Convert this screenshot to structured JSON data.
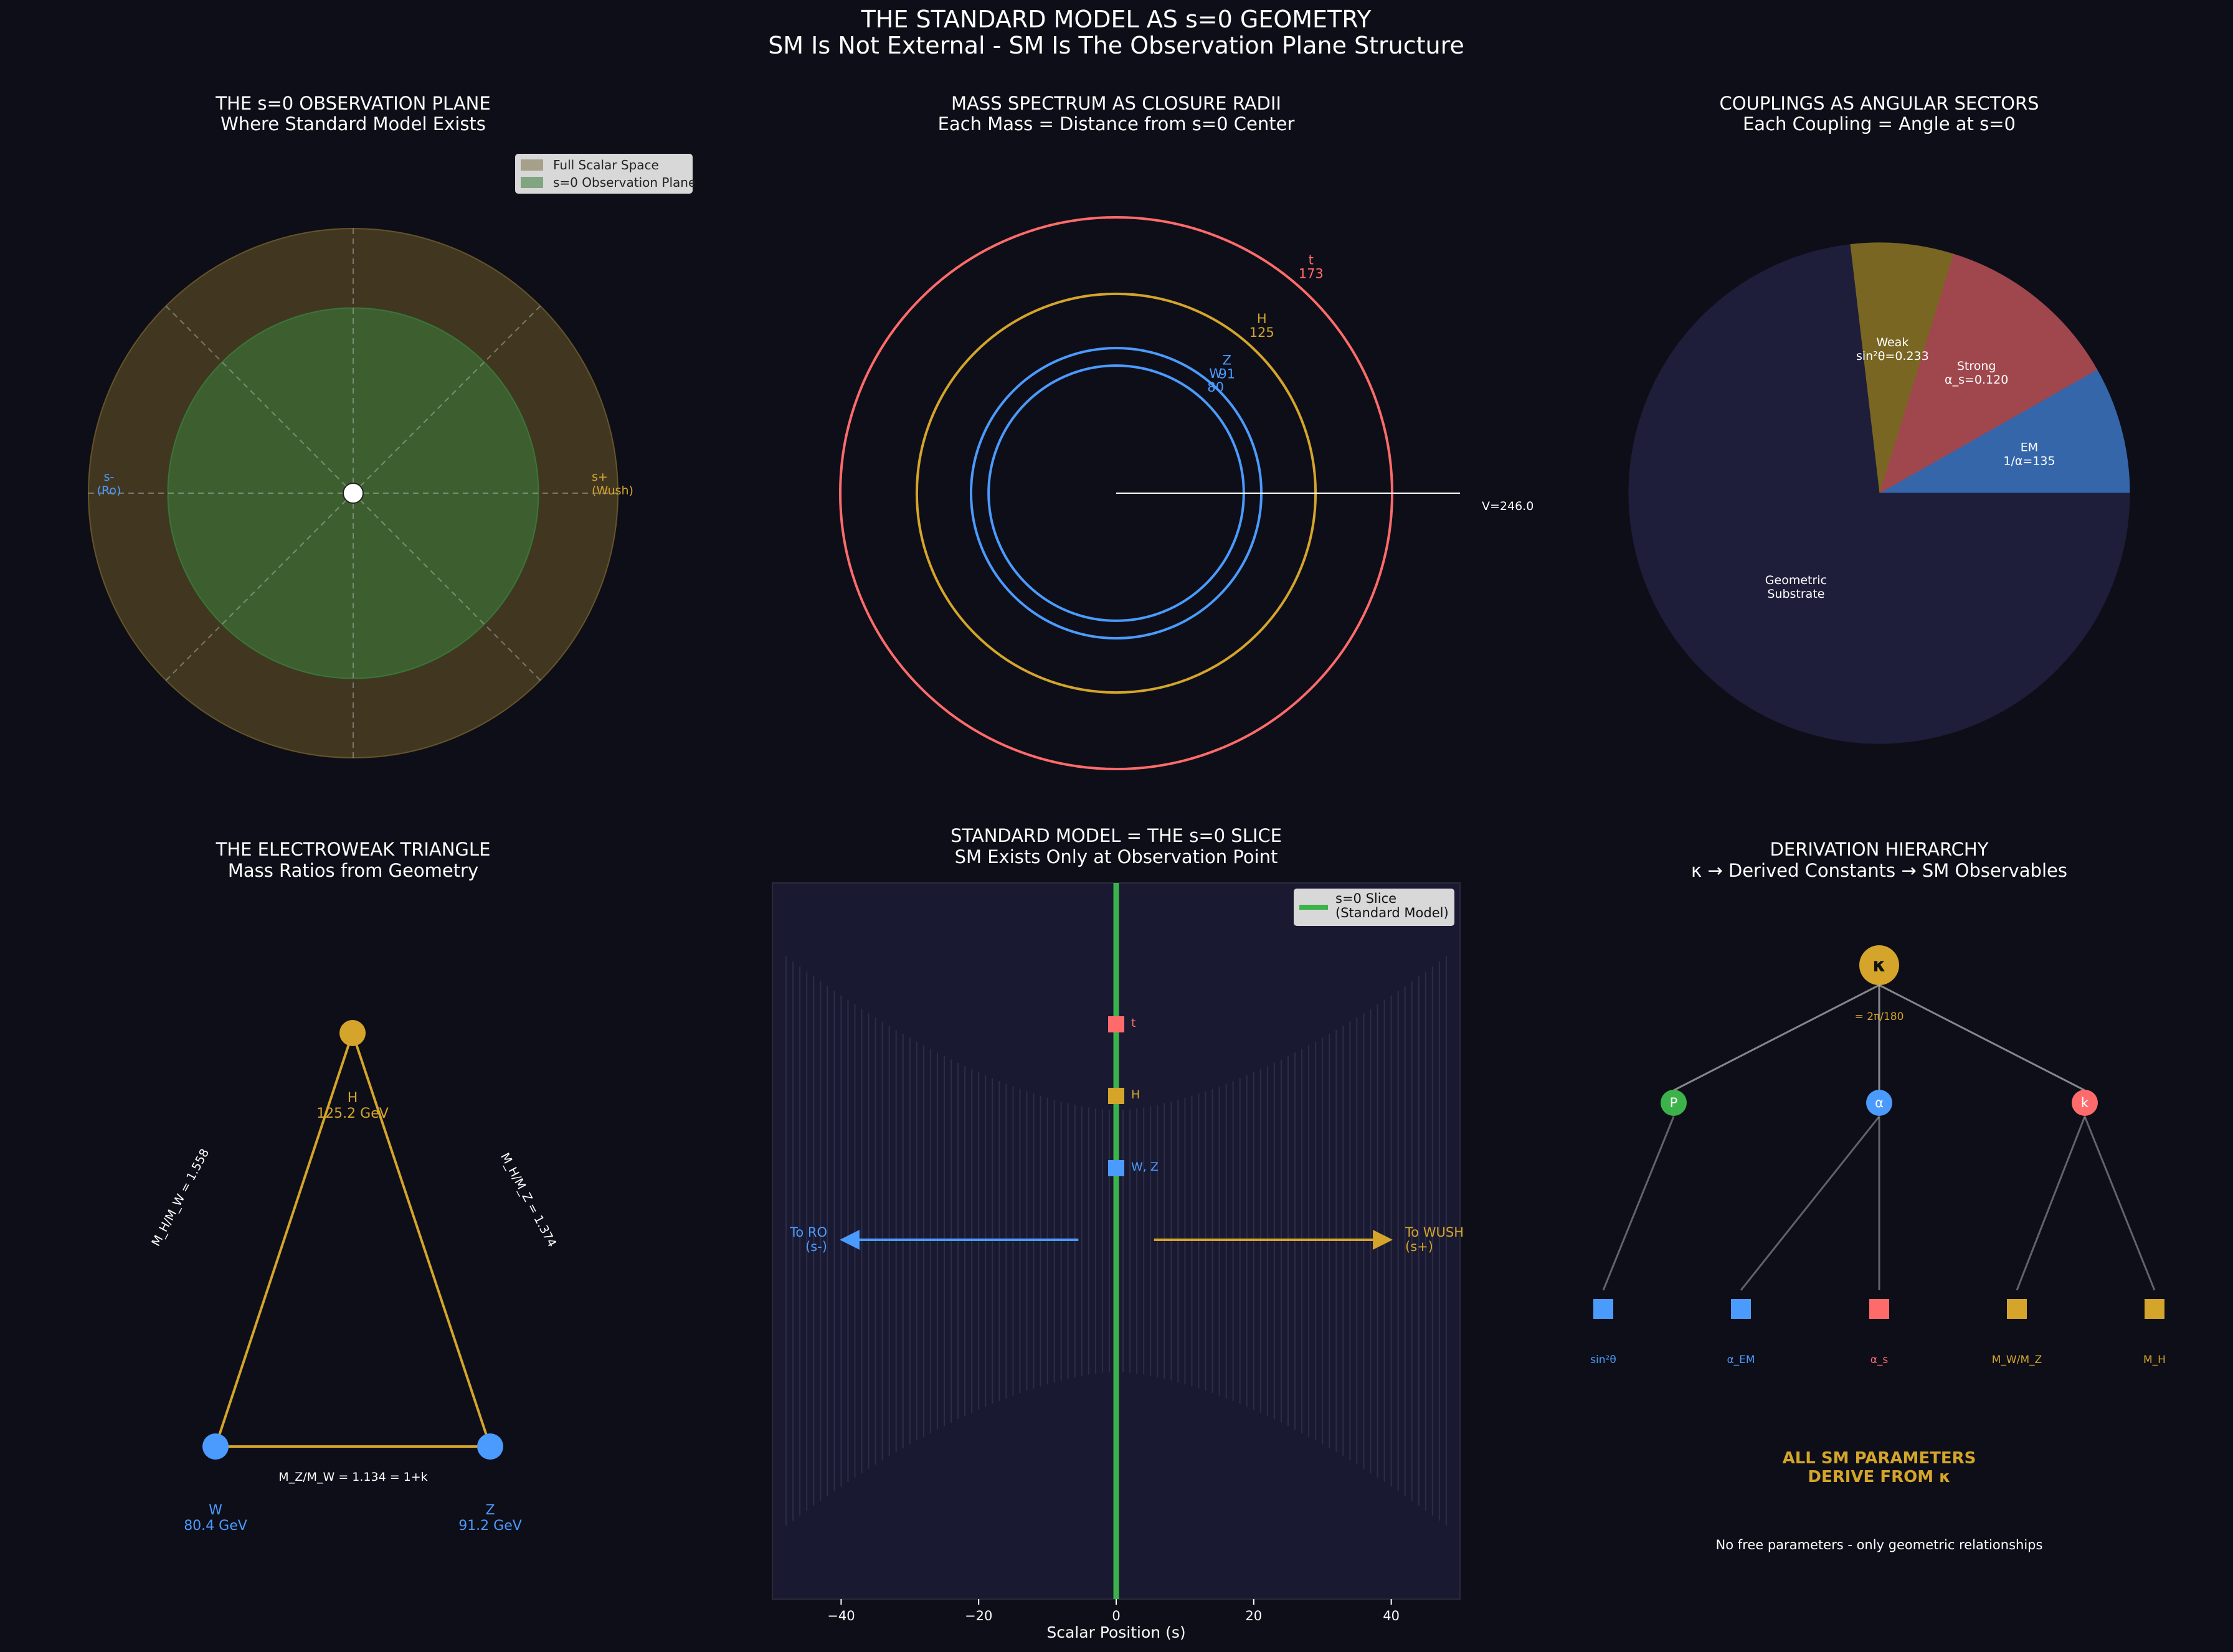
{
  "figure": {
    "title": "THE STANDARD MODEL AS s=0 GEOMETRY",
    "subtitle": "SM Is Not External - SM Is The Observation Plane Structure",
    "colors": {
      "background": "#0e0e18",
      "text": "#ffffff",
      "gold": "#d4a52a",
      "blue": "#4b9bff",
      "red": "#ff6b6b",
      "green": "#3cb34a"
    }
  },
  "chart_data": [
    {
      "type": "area",
      "id": "observation-plane",
      "title": "THE s=0 OBSERVATION PLANE",
      "subtitle": "Where Standard Model Exists",
      "regions": [
        {
          "name": "Full Scalar Space",
          "radius": 1.0,
          "color": "#6b5a2a"
        },
        {
          "name": "s=0 Observation Plane",
          "radius": 0.7,
          "color": "#3a7a3a"
        }
      ],
      "guide_angles_deg": [
        0,
        45,
        90,
        135,
        180,
        225,
        270,
        315
      ],
      "center_marker": "s=0",
      "labels": {
        "left": "s-\n(Ro)",
        "right": "s+\n(Wush)"
      },
      "legend": [
        "Full Scalar Space",
        "s=0 Observation Plane"
      ],
      "legend_position": "top-right"
    },
    {
      "type": "scatter",
      "id": "mass-spectrum",
      "title": "MASS SPECTRUM AS CLOSURE RADII",
      "subtitle": "Each Mass = Distance from s=0 Center",
      "radius_max": 246.0,
      "rings": [
        {
          "name": "t",
          "value": 173,
          "label": "t\n173",
          "color": "#ff6b6b"
        },
        {
          "name": "H",
          "value": 125,
          "label": "H\n125",
          "color": "#d4a52a"
        },
        {
          "name": "Z",
          "value": 91,
          "label": "Z\n91",
          "color": "#4b9bff"
        },
        {
          "name": "W",
          "value": 80,
          "label": "W\n80",
          "color": "#4b9bff"
        }
      ],
      "vev_line": {
        "value": 246.0,
        "label": "V=246.0"
      }
    },
    {
      "type": "pie",
      "id": "couplings",
      "title": "COUPLINGS AS ANGULAR SECTORS",
      "subtitle": "Each Coupling = Angle at s=0",
      "start_angle_deg": 0,
      "slices": [
        {
          "name": "EM",
          "label": "EM\n1/α=135",
          "angle_deg": 29.6,
          "color": "#3566aa"
        },
        {
          "name": "Strong",
          "label": "Strong\nα_s=0.120",
          "angle_deg": 43.2,
          "color": "#a0474e"
        },
        {
          "name": "Weak",
          "label": "Weak\nsin²θ=0.233",
          "angle_deg": 23.9,
          "color": "#7a6623"
        },
        {
          "name": "Geometric Substrate",
          "label": "Geometric\nSubstrate",
          "angle_deg": 263.3,
          "color": "#1e1e3a"
        }
      ]
    },
    {
      "type": "scatter",
      "id": "electroweak-triangle",
      "title": "THE ELECTROWEAK TRIANGLE",
      "subtitle": "Mass Ratios from Geometry",
      "vertices": [
        {
          "name": "W",
          "label": "W\n80.4 GeV",
          "mass_gev": 80.4,
          "color": "#4b9bff"
        },
        {
          "name": "Z",
          "label": "Z\n91.2 GeV",
          "mass_gev": 91.2,
          "color": "#4b9bff"
        },
        {
          "name": "H",
          "label": "H\n125.2 GeV",
          "mass_gev": 125.2,
          "color": "#d4a52a"
        }
      ],
      "edge_labels": {
        "left": "M_H/M_W = 1.558",
        "right": "M_H/M_Z = 1.374",
        "bottom": "M_Z/M_W = 1.134 = 1+k"
      }
    },
    {
      "type": "scatter",
      "id": "sm-slice",
      "title": "STANDARD MODEL = THE s=0 SLICE",
      "subtitle": "SM Exists Only at Observation Point",
      "xlabel": "Scalar Position (s)",
      "xlim": [
        -50,
        50
      ],
      "xticks": [
        -40,
        -20,
        0,
        20,
        40
      ],
      "slice_x": 0,
      "legend": "s=0 Slice\n(Standard Model)",
      "legend_position": "top-right",
      "markers": [
        {
          "name": "t",
          "label": "t",
          "color": "#ff6b6b"
        },
        {
          "name": "H",
          "label": "H",
          "color": "#d4a52a"
        },
        {
          "name": "W, Z",
          "label": "W, Z",
          "color": "#4b9bff"
        }
      ],
      "arrows": [
        {
          "direction": "left",
          "label": "To RO\n(s-)",
          "color": "#4b9bff"
        },
        {
          "direction": "right",
          "label": "To WUSH\n(s+)",
          "color": "#d4a52a"
        }
      ]
    },
    {
      "type": "diagram",
      "id": "derivation-hierarchy",
      "title": "DERIVATION HIERARCHY",
      "subtitle": "κ → Derived Constants → SM Observables",
      "root": {
        "name": "kappa",
        "label": "κ",
        "note": "= 2π/180",
        "color": "#d4a52a"
      },
      "mid": [
        {
          "name": "P",
          "label": "P",
          "color": "#3cb34a"
        },
        {
          "name": "alpha",
          "label": "α",
          "color": "#4b9bff"
        },
        {
          "name": "k",
          "label": "k",
          "color": "#ff6b6b"
        }
      ],
      "leaves": [
        {
          "name": "sin2theta",
          "label": "sin²θ",
          "color": "#4b9bff"
        },
        {
          "name": "alpha-em",
          "label": "α_EM",
          "color": "#4b9bff"
        },
        {
          "name": "alpha-s",
          "label": "α_s",
          "color": "#ff6b6b"
        },
        {
          "name": "mw-mz",
          "label": "M_W/M_Z",
          "color": "#d4a52a"
        },
        {
          "name": "mh",
          "label": "M_H",
          "color": "#d4a52a"
        }
      ],
      "edges": [
        [
          "kappa",
          "P"
        ],
        [
          "kappa",
          "alpha"
        ],
        [
          "kappa",
          "k"
        ],
        [
          "P",
          "sin2theta"
        ],
        [
          "alpha",
          "alpha-em"
        ],
        [
          "alpha",
          "alpha-s"
        ],
        [
          "k",
          "mw-mz"
        ],
        [
          "k",
          "mh"
        ]
      ],
      "conclusion": "ALL SM PARAMETERS\nDERIVE FROM κ",
      "footnote": "No free parameters - only geometric relationships"
    }
  ]
}
